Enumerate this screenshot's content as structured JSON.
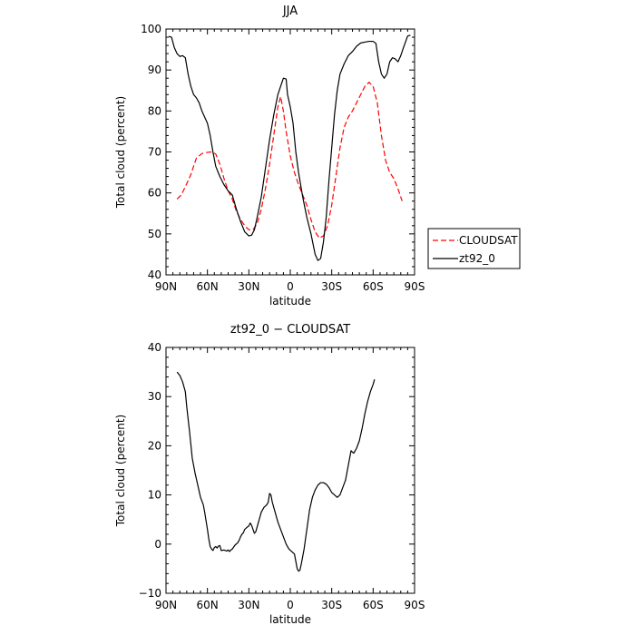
{
  "chart_data": [
    {
      "type": "line",
      "title": "JJA",
      "xlabel": "latitude",
      "ylabel": "Total cloud (percent)",
      "xlim": [
        -90,
        90
      ],
      "ylim": [
        40,
        100
      ],
      "x_ticks": [
        {
          "value": -90,
          "label": "90N"
        },
        {
          "value": -60,
          "label": "60N"
        },
        {
          "value": -30,
          "label": "30N"
        },
        {
          "value": 0,
          "label": "0"
        },
        {
          "value": 30,
          "label": "30S"
        },
        {
          "value": 60,
          "label": "60S"
        },
        {
          "value": 90,
          "label": "90S"
        }
      ],
      "y_ticks": [
        40,
        50,
        60,
        70,
        80,
        90,
        100
      ],
      "legend": {
        "placement": "right"
      },
      "series": [
        {
          "name": "CLOUDSAT",
          "color": "#ff0000",
          "style": "dashed",
          "points": [
            [
              -82,
              58.5
            ],
            [
              -79,
              59.5
            ],
            [
              -76,
              61.5
            ],
            [
              -72,
              64.5
            ],
            [
              -68,
              68.5
            ],
            [
              -64,
              69.6
            ],
            [
              -60,
              69.9
            ],
            [
              -57,
              70
            ],
            [
              -54,
              69.5
            ],
            [
              -51,
              67
            ],
            [
              -48,
              63.5
            ],
            [
              -45,
              60.5
            ],
            [
              -42,
              58.5
            ],
            [
              -39,
              55.5
            ],
            [
              -36,
              53.5
            ],
            [
              -33,
              52
            ],
            [
              -30,
              51
            ],
            [
              -27,
              51
            ],
            [
              -24,
              52.5
            ],
            [
              -21,
              56
            ],
            [
              -18,
              61
            ],
            [
              -15,
              67
            ],
            [
              -12,
              74
            ],
            [
              -9,
              81
            ],
            [
              -7,
              83.5
            ],
            [
              -5,
              80
            ],
            [
              -3,
              75
            ],
            [
              0,
              69
            ],
            [
              3,
              65
            ],
            [
              6,
              62
            ],
            [
              9,
              59.5
            ],
            [
              12,
              57
            ],
            [
              15,
              53.5
            ],
            [
              18,
              50.5
            ],
            [
              21,
              49
            ],
            [
              24,
              49.5
            ],
            [
              27,
              52
            ],
            [
              30,
              57
            ],
            [
              33,
              64
            ],
            [
              36,
              71
            ],
            [
              39,
              76
            ],
            [
              42,
              78.5
            ],
            [
              45,
              80
            ],
            [
              48,
              82
            ],
            [
              51,
              84
            ],
            [
              54,
              86
            ],
            [
              57,
              87
            ],
            [
              60,
              86
            ],
            [
              63,
              82
            ],
            [
              66,
              74
            ],
            [
              69,
              68
            ],
            [
              72,
              65
            ],
            [
              75,
              63.5
            ],
            [
              78,
              61
            ],
            [
              81,
              58
            ]
          ]
        },
        {
          "name": "zt92_0",
          "color": "#000000",
          "style": "solid",
          "points": [
            [
              -88,
              98.2
            ],
            [
              -86,
              98
            ],
            [
              -84,
              95.5
            ],
            [
              -82,
              94
            ],
            [
              -80,
              93.3
            ],
            [
              -78,
              93.5
            ],
            [
              -76,
              93
            ],
            [
              -74,
              89
            ],
            [
              -72,
              86
            ],
            [
              -70,
              84
            ],
            [
              -68,
              83.2
            ],
            [
              -66,
              82
            ],
            [
              -64,
              80
            ],
            [
              -62,
              78.5
            ],
            [
              -60,
              77
            ],
            [
              -58,
              74
            ],
            [
              -56,
              70
            ],
            [
              -54,
              66.5
            ],
            [
              -51,
              64
            ],
            [
              -48,
              62
            ],
            [
              -45,
              60.5
            ],
            [
              -42,
              59.5
            ],
            [
              -39,
              56
            ],
            [
              -36,
              53
            ],
            [
              -33,
              50.5
            ],
            [
              -30,
              49.5
            ],
            [
              -28,
              49.7
            ],
            [
              -26,
              51
            ],
            [
              -24,
              54
            ],
            [
              -21,
              59
            ],
            [
              -18,
              66
            ],
            [
              -15,
              73
            ],
            [
              -12,
              79
            ],
            [
              -9,
              84
            ],
            [
              -7,
              86
            ],
            [
              -5,
              88
            ],
            [
              -3,
              87.8
            ],
            [
              -2,
              84
            ],
            [
              0,
              81
            ],
            [
              2,
              77
            ],
            [
              4,
              70
            ],
            [
              6,
              65
            ],
            [
              9,
              59
            ],
            [
              12,
              54
            ],
            [
              15,
              50
            ],
            [
              18,
              45
            ],
            [
              20,
              43.5
            ],
            [
              22,
              44
            ],
            [
              24,
              48
            ],
            [
              26,
              54
            ],
            [
              28,
              63
            ],
            [
              30,
              71
            ],
            [
              32,
              79
            ],
            [
              34,
              85
            ],
            [
              36,
              89
            ],
            [
              39,
              91.5
            ],
            [
              42,
              93.5
            ],
            [
              45,
              94.5
            ],
            [
              48,
              95.8
            ],
            [
              51,
              96.6
            ],
            [
              54,
              96.8
            ],
            [
              57,
              97
            ],
            [
              60,
              97
            ],
            [
              62,
              96.5
            ],
            [
              64,
              92
            ],
            [
              66,
              89
            ],
            [
              68,
              88
            ],
            [
              70,
              89
            ],
            [
              72,
              92
            ],
            [
              74,
              93
            ],
            [
              76,
              92.7
            ],
            [
              78,
              92
            ],
            [
              80,
              93.5
            ],
            [
              82,
              95.5
            ],
            [
              85,
              98.3
            ],
            [
              87,
              98.5
            ]
          ]
        }
      ]
    },
    {
      "type": "line",
      "title": "zt92_0 − CLOUDSAT",
      "xlabel": "latitude",
      "ylabel": "Total cloud (percent)",
      "xlim": [
        -90,
        90
      ],
      "ylim": [
        -10,
        40
      ],
      "x_ticks": [
        {
          "value": -90,
          "label": "90N"
        },
        {
          "value": -60,
          "label": "60N"
        },
        {
          "value": -30,
          "label": "30N"
        },
        {
          "value": 0,
          "label": "0"
        },
        {
          "value": 30,
          "label": "30S"
        },
        {
          "value": 60,
          "label": "60S"
        },
        {
          "value": 90,
          "label": "90S"
        }
      ],
      "y_ticks": [
        -10,
        0,
        10,
        20,
        30,
        40
      ],
      "series": [
        {
          "color": "#000000",
          "style": "solid",
          "points": [
            [
              -82,
              35
            ],
            [
              -80,
              34.3
            ],
            [
              -78,
              33
            ],
            [
              -76,
              31
            ],
            [
              -75,
              28
            ],
            [
              -73,
              23
            ],
            [
              -71,
              17.5
            ],
            [
              -69,
              14.5
            ],
            [
              -67,
              12
            ],
            [
              -65,
              9.5
            ],
            [
              -63,
              8
            ],
            [
              -62,
              6.5
            ],
            [
              -60,
              3
            ],
            [
              -59,
              1
            ],
            [
              -58,
              -0.5
            ],
            [
              -57,
              -1
            ],
            [
              -56,
              -1.3
            ],
            [
              -55,
              -0.7
            ],
            [
              -54,
              -0.5
            ],
            [
              -53,
              -0.8
            ],
            [
              -52,
              -0.4
            ],
            [
              -51,
              -0.3
            ],
            [
              -50,
              -1.3
            ],
            [
              -48,
              -1.2
            ],
            [
              -46,
              -1.4
            ],
            [
              -45,
              -1.2
            ],
            [
              -44,
              -1.5
            ],
            [
              -43,
              -1.2
            ],
            [
              -42,
              -1
            ],
            [
              -40,
              -0.2
            ],
            [
              -38,
              0.3
            ],
            [
              -37,
              0.8
            ],
            [
              -36,
              1.5
            ],
            [
              -35,
              2
            ],
            [
              -34,
              2.3
            ],
            [
              -33,
              3
            ],
            [
              -31,
              3.5
            ],
            [
              -30,
              3.7
            ],
            [
              -29,
              4.3
            ],
            [
              -28,
              3.8
            ],
            [
              -27,
              3
            ],
            [
              -26,
              2.2
            ],
            [
              -25,
              2.5
            ],
            [
              -24,
              3.5
            ],
            [
              -23,
              4.5
            ],
            [
              -22,
              5.5
            ],
            [
              -21,
              6.5
            ],
            [
              -19,
              7.5
            ],
            [
              -17,
              8
            ],
            [
              -16,
              8.5
            ],
            [
              -15,
              10.3
            ],
            [
              -14,
              10
            ],
            [
              -13,
              8.5
            ],
            [
              -11,
              6.5
            ],
            [
              -9,
              4.5
            ],
            [
              -7,
              3
            ],
            [
              -5,
              1.5
            ],
            [
              -3,
              0
            ],
            [
              -1,
              -1
            ],
            [
              1,
              -1.5
            ],
            [
              3,
              -2
            ],
            [
              4,
              -3.5
            ],
            [
              5,
              -5
            ],
            [
              6,
              -5.5
            ],
            [
              7,
              -5.3
            ],
            [
              8,
              -4
            ],
            [
              10,
              -1
            ],
            [
              12,
              3
            ],
            [
              14,
              7
            ],
            [
              16,
              9.5
            ],
            [
              18,
              11
            ],
            [
              20,
              12
            ],
            [
              22,
              12.5
            ],
            [
              24,
              12.5
            ],
            [
              26,
              12.2
            ],
            [
              28,
              11.5
            ],
            [
              30,
              10.5
            ],
            [
              32,
              10
            ],
            [
              34,
              9.5
            ],
            [
              36,
              10
            ],
            [
              38,
              11.5
            ],
            [
              40,
              13
            ],
            [
              42,
              16
            ],
            [
              44,
              19
            ],
            [
              45,
              18.7
            ],
            [
              46,
              18.5
            ],
            [
              48,
              19.5
            ],
            [
              50,
              21
            ],
            [
              52,
              23.5
            ],
            [
              54,
              26.5
            ],
            [
              56,
              29
            ],
            [
              58,
              31
            ],
            [
              60,
              32.5
            ],
            [
              61,
              33.5
            ]
          ]
        }
      ]
    }
  ]
}
